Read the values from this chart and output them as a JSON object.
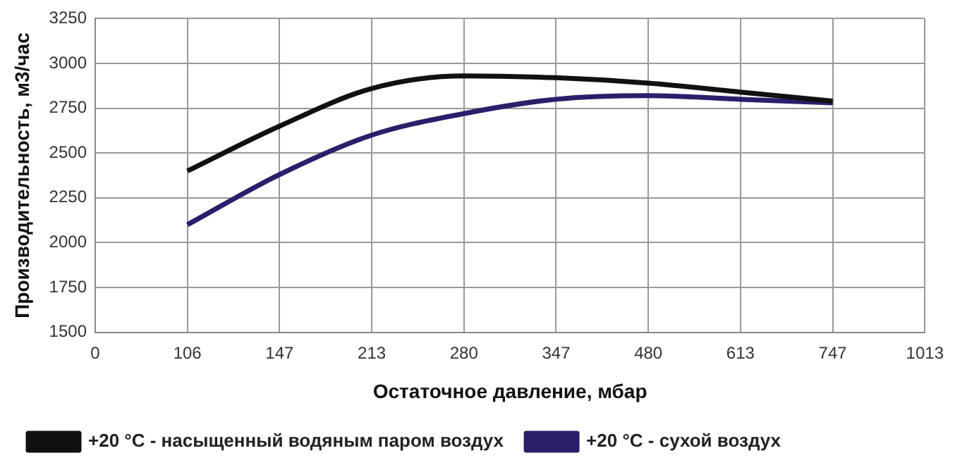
{
  "chart_data": {
    "type": "line",
    "xlabel": "Остаточное давление, мбар",
    "ylabel": "Производительность, м3/час",
    "categories": [
      "0",
      "106",
      "147",
      "213",
      "280",
      "347",
      "480",
      "613",
      "747",
      "1013"
    ],
    "series": [
      {
        "name": "+20 °C - насыщенный водяным паром воздух",
        "color": "#111111",
        "values": [
          null,
          2400,
          2650,
          2860,
          2930,
          2920,
          2890,
          2840,
          2790,
          null
        ]
      },
      {
        "name": "+20 °C - сухой воздух",
        "color": "#2a1f6b",
        "values": [
          null,
          2100,
          2380,
          2600,
          2720,
          2800,
          2820,
          2800,
          2780,
          null
        ]
      }
    ],
    "ylim": [
      1500,
      3250
    ],
    "yticks": [
      1500,
      1750,
      2000,
      2250,
      2500,
      2750,
      3000,
      3250
    ],
    "grid": true,
    "legend": "bottom",
    "marker": "none",
    "line_style": "solid"
  }
}
